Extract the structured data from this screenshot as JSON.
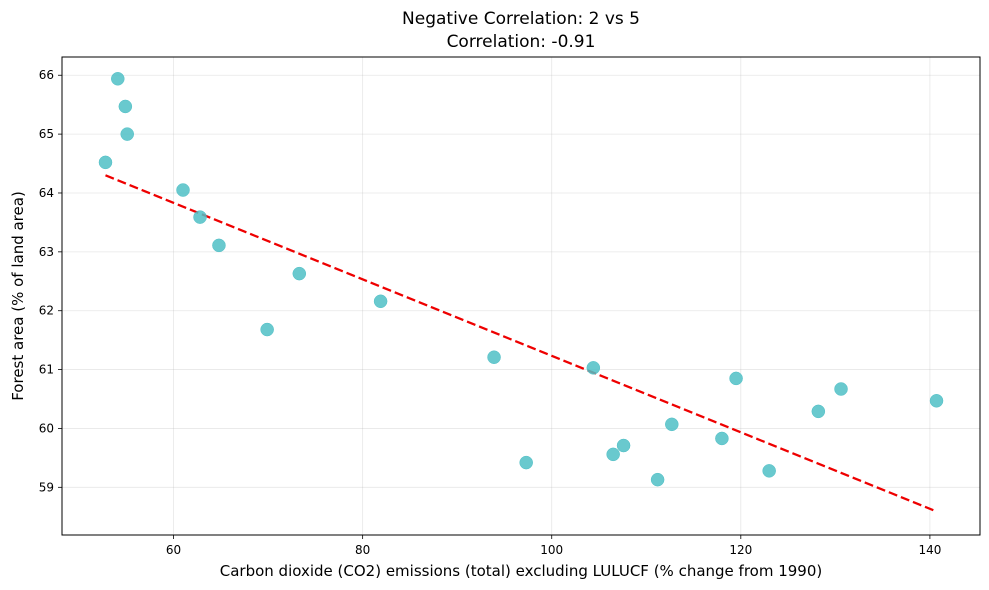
{
  "chart_data": {
    "type": "scatter",
    "title": "Negative Correlation: 2 vs 5",
    "subtitle": "Correlation: -0.91",
    "xlabel": "Carbon dioxide (CO2) emissions (total) excluding LULUCF (% change from 1990)",
    "ylabel": "Forest area (% of land area)",
    "xlim": [
      48.2,
      145.3
    ],
    "ylim": [
      58.19,
      66.31
    ],
    "x_ticks": [
      60,
      80,
      100,
      120,
      140
    ],
    "x_tick_labels": [
      "60",
      "80",
      "100",
      "120",
      "140"
    ],
    "y_ticks": [
      59,
      60,
      61,
      62,
      63,
      64,
      65,
      66
    ],
    "y_tick_labels": [
      "59",
      "60",
      "61",
      "62",
      "63",
      "64",
      "65",
      "66"
    ],
    "grid": true,
    "point_color": "#4fbfc6",
    "trend_color": "#ee0000",
    "points": [
      {
        "x": 52.8,
        "y": 64.52
      },
      {
        "x": 54.1,
        "y": 65.94
      },
      {
        "x": 54.9,
        "y": 65.47
      },
      {
        "x": 55.1,
        "y": 65.0
      },
      {
        "x": 61.0,
        "y": 64.05
      },
      {
        "x": 62.8,
        "y": 63.59
      },
      {
        "x": 64.8,
        "y": 63.11
      },
      {
        "x": 69.9,
        "y": 61.68
      },
      {
        "x": 73.3,
        "y": 62.63
      },
      {
        "x": 81.9,
        "y": 62.16
      },
      {
        "x": 93.9,
        "y": 61.21
      },
      {
        "x": 97.3,
        "y": 59.42
      },
      {
        "x": 104.4,
        "y": 61.03
      },
      {
        "x": 106.5,
        "y": 59.56
      },
      {
        "x": 107.6,
        "y": 59.71
      },
      {
        "x": 111.2,
        "y": 59.13
      },
      {
        "x": 112.7,
        "y": 60.07
      },
      {
        "x": 118.0,
        "y": 59.83
      },
      {
        "x": 119.5,
        "y": 60.85
      },
      {
        "x": 123.0,
        "y": 59.28
      },
      {
        "x": 128.2,
        "y": 60.29
      },
      {
        "x": 130.6,
        "y": 60.67
      },
      {
        "x": 140.7,
        "y": 60.47
      }
    ],
    "trend_line": {
      "x": [
        52.8,
        140.7
      ],
      "y": [
        64.3,
        58.59
      ]
    }
  }
}
